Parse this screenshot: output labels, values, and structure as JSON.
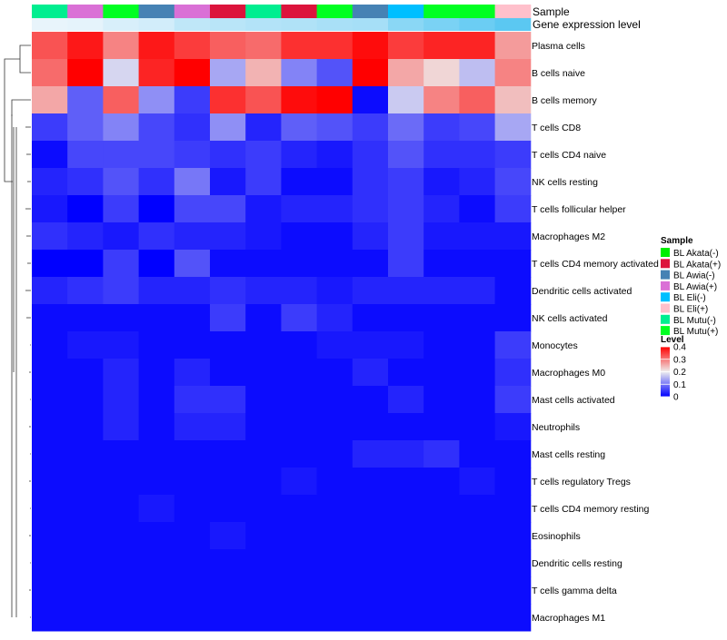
{
  "chart_data": {
    "type": "heatmap",
    "annotation_titles": [
      "Sample",
      "Gene expression level"
    ],
    "rows": [
      "Plasma cells",
      "B cells naive",
      "B cells memory",
      "T cells CD8",
      "T cells CD4 naive",
      "NK cells resting",
      "T cells follicular helper",
      "Macrophages M2",
      "T cells CD4 memory activated",
      "Dendritic cells activated",
      "NK cells activated",
      "Monocytes",
      "Macrophages M0",
      "Mast cells activated",
      "Neutrophils",
      "Mast cells resting",
      "T cells regulatory  Tregs",
      "T cells CD4 memory resting",
      "Eosinophils",
      "Dendritic cells resting",
      "T cells gamma delta",
      "Macrophages M1"
    ],
    "column_samples": [
      "BL Mutu(-)",
      "BL Awia(+)",
      "BL Mutu(+)",
      "BL Awia(-)",
      "BL Awia(+)",
      "BL Akata(+)",
      "BL Mutu(-)",
      "BL Akata(+)",
      "BL Mutu(+)",
      "BL Awia(-)",
      "BL Eli(-)",
      "BL Mutu(+)",
      "BL Mutu(+)",
      "BL Eli(+)"
    ],
    "column_expression_level": [
      0.15,
      0.16,
      0.2,
      0.22,
      0.28,
      0.3,
      0.32,
      0.33,
      0.35,
      0.36,
      0.45,
      0.5,
      0.55,
      0.6
    ],
    "values": [
      [
        0.33,
        0.38,
        0.29,
        0.38,
        0.35,
        0.32,
        0.31,
        0.36,
        0.36,
        0.39,
        0.35,
        0.37,
        0.37,
        0.27
      ],
      [
        0.31,
        0.4,
        0.18,
        0.37,
        0.4,
        0.14,
        0.25,
        0.11,
        0.07,
        0.4,
        0.26,
        0.22,
        0.16,
        0.29
      ],
      [
        0.26,
        0.08,
        0.32,
        0.12,
        0.05,
        0.36,
        0.33,
        0.39,
        0.4,
        0.01,
        0.17,
        0.29,
        0.32,
        0.24
      ],
      [
        0.05,
        0.08,
        0.11,
        0.06,
        0.04,
        0.12,
        0.03,
        0.08,
        0.07,
        0.05,
        0.09,
        0.05,
        0.06,
        0.14
      ],
      [
        0.01,
        0.06,
        0.06,
        0.06,
        0.05,
        0.04,
        0.05,
        0.03,
        0.02,
        0.04,
        0.07,
        0.04,
        0.04,
        0.05
      ],
      [
        0.03,
        0.04,
        0.07,
        0.04,
        0.1,
        0.02,
        0.05,
        0.01,
        0.01,
        0.04,
        0.05,
        0.02,
        0.03,
        0.06
      ],
      [
        0.02,
        0.0,
        0.05,
        0.0,
        0.06,
        0.06,
        0.02,
        0.03,
        0.03,
        0.04,
        0.05,
        0.03,
        0.01,
        0.05
      ],
      [
        0.04,
        0.03,
        0.02,
        0.04,
        0.03,
        0.03,
        0.02,
        0.01,
        0.01,
        0.03,
        0.05,
        0.02,
        0.02,
        0.02
      ],
      [
        0.0,
        0.0,
        0.05,
        0.0,
        0.07,
        0.01,
        0.01,
        0.01,
        0.01,
        0.01,
        0.05,
        0.01,
        0.01,
        0.01
      ],
      [
        0.03,
        0.04,
        0.05,
        0.03,
        0.03,
        0.04,
        0.03,
        0.03,
        0.02,
        0.03,
        0.03,
        0.03,
        0.03,
        0.01
      ],
      [
        0.01,
        0.01,
        0.01,
        0.01,
        0.01,
        0.05,
        0.01,
        0.05,
        0.03,
        0.01,
        0.01,
        0.01,
        0.01,
        0.01
      ],
      [
        0.01,
        0.02,
        0.02,
        0.01,
        0.01,
        0.01,
        0.01,
        0.01,
        0.02,
        0.02,
        0.02,
        0.01,
        0.01,
        0.05
      ],
      [
        0.01,
        0.01,
        0.03,
        0.01,
        0.03,
        0.01,
        0.01,
        0.01,
        0.01,
        0.03,
        0.01,
        0.01,
        0.01,
        0.04
      ],
      [
        0.01,
        0.01,
        0.03,
        0.01,
        0.04,
        0.04,
        0.01,
        0.01,
        0.01,
        0.01,
        0.03,
        0.01,
        0.01,
        0.05
      ],
      [
        0.01,
        0.01,
        0.03,
        0.01,
        0.03,
        0.03,
        0.01,
        0.01,
        0.01,
        0.01,
        0.01,
        0.01,
        0.01,
        0.02
      ],
      [
        0.01,
        0.01,
        0.01,
        0.01,
        0.01,
        0.01,
        0.01,
        0.01,
        0.01,
        0.03,
        0.03,
        0.04,
        0.01,
        0.01
      ],
      [
        0.01,
        0.01,
        0.01,
        0.01,
        0.01,
        0.01,
        0.01,
        0.02,
        0.01,
        0.01,
        0.01,
        0.01,
        0.02,
        0.01
      ],
      [
        0.01,
        0.01,
        0.01,
        0.02,
        0.01,
        0.01,
        0.01,
        0.01,
        0.01,
        0.01,
        0.01,
        0.01,
        0.01,
        0.01
      ],
      [
        0.01,
        0.01,
        0.01,
        0.01,
        0.01,
        0.02,
        0.01,
        0.01,
        0.01,
        0.01,
        0.01,
        0.01,
        0.01,
        0.01
      ],
      [
        0.01,
        0.01,
        0.01,
        0.01,
        0.01,
        0.01,
        0.01,
        0.01,
        0.01,
        0.01,
        0.01,
        0.01,
        0.01,
        0.01
      ],
      [
        0.01,
        0.01,
        0.01,
        0.01,
        0.01,
        0.01,
        0.01,
        0.01,
        0.01,
        0.01,
        0.01,
        0.01,
        0.01,
        0.01
      ],
      [
        0.01,
        0.01,
        0.01,
        0.01,
        0.01,
        0.01,
        0.01,
        0.01,
        0.01,
        0.01,
        0.01,
        0.01,
        0.01,
        0.01
      ]
    ],
    "dendrogram_merges": [
      [
        0,
        1
      ],
      [
        1,
        2
      ],
      [
        3,
        21
      ],
      [
        2,
        4
      ]
    ],
    "sample_legend": {
      "title": "Sample",
      "entries": [
        {
          "label": "BL Akata(-)",
          "color": "#00EE00"
        },
        {
          "label": "BL Akata(+)",
          "color": "#DC143C"
        },
        {
          "label": "BL Awia(-)",
          "color": "#4682B4"
        },
        {
          "label": "BL Awia(+)",
          "color": "#DA70D6"
        },
        {
          "label": "BL Eli(-)",
          "color": "#00BFFF"
        },
        {
          "label": "BL Eli(+)",
          "color": "#FFC0CB"
        },
        {
          "label": "BL Mutu(-)",
          "color": "#00EE90"
        },
        {
          "label": "BL Mutu(+)",
          "color": "#00FF22"
        }
      ]
    },
    "color_scale": {
      "title": "Level",
      "min": 0,
      "max": 0.4,
      "ticks": [
        "0.4",
        "0.3",
        "0.2",
        "0.1",
        "0"
      ],
      "tick_values": [
        0.4,
        0.3,
        0.2,
        0.1,
        0
      ],
      "low_color": "#0000FF",
      "mid_color": "#EEEEEE",
      "high_color": "#FF0000",
      "mid_value": 0.2
    },
    "expression_bar_colors": {
      "low": "#E8F4FB",
      "high": "#5BC8F2"
    }
  }
}
